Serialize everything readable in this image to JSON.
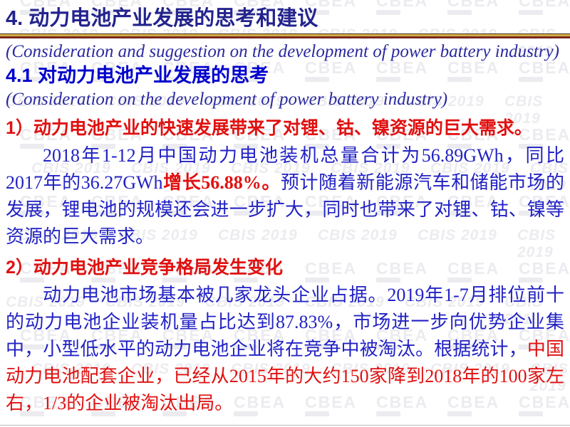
{
  "slide": {
    "title": "4. 动力电池产业发展的思考和建议",
    "title_en": "(Consideration and suggestion on the development of power battery industry)",
    "section": {
      "heading": "4.1 对动力电池产业发展的思考",
      "heading_en": "(Consideration on the development of power battery industry)"
    },
    "point1": {
      "heading": "1）动力电池产业的快速发展带来了对锂、钴、镍资源的巨大需求。",
      "body_part1": "2018年1-12月中国动力电池装机总量合计为56.89GWh，同比2017年的36.27GWh",
      "body_highlight": "增长56.88%。",
      "body_part2": "预计随着新能源汽车和储能市场的发展，锂电池的规模还会进一步扩大，同时也带来了对锂、钴、镍等资源的巨大需求。"
    },
    "point2": {
      "heading": "2）动力电池产业竞争格局发生变化",
      "body_part1": "动力电池市场基本被几家龙头企业占据。2019年1-7月排位前十的动力电池企业装机量占比达到87.83%，市场进一步向优势企业集中，小型低水平的动力电池企业将在竞争中被淘汰。根据统计，",
      "body_highlight": "中国动力电池配套企业，已经从2015年的大约150家降到2018年的100家左右，1/3的企业被淘汰出局。"
    }
  },
  "watermark": {
    "brand": "CBEA",
    "event": "CBIS 2019",
    "color": "#ECECF0"
  },
  "colors": {
    "title": "#23238E",
    "english_italic": "#2A2AA0",
    "section_heading": "#0000CC",
    "body_text": "#2222C4",
    "accent_red": "#E01010",
    "divider_gold": "#D8B44A",
    "divider_maroon": "#6E1E1E"
  }
}
